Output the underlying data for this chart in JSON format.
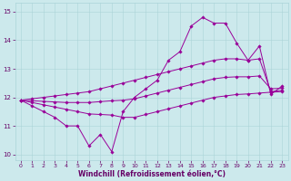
{
  "xlabel": "Windchill (Refroidissement éolien,°C)",
  "bg_color": "#cce9ec",
  "line_color": "#990099",
  "grid_color": "#aad4d8",
  "tick_color": "#660066",
  "x_hours": [
    0,
    1,
    2,
    3,
    4,
    5,
    6,
    7,
    8,
    9,
    10,
    11,
    12,
    13,
    14,
    15,
    16,
    17,
    18,
    19,
    20,
    21,
    22,
    23
  ],
  "y_actual": [
    11.9,
    11.7,
    11.5,
    11.3,
    11.0,
    11.0,
    10.3,
    10.7,
    10.1,
    11.5,
    12.0,
    12.3,
    12.6,
    13.3,
    13.6,
    14.5,
    14.8,
    14.6,
    14.6,
    13.9,
    13.3,
    13.8,
    12.1,
    12.4
  ],
  "y_max_line": [
    11.9,
    11.95,
    12.0,
    12.05,
    12.1,
    12.15,
    12.2,
    12.3,
    12.4,
    12.5,
    12.6,
    12.7,
    12.8,
    12.9,
    13.0,
    13.1,
    13.2,
    13.3,
    13.35,
    13.35,
    13.3,
    13.35,
    12.2,
    12.25
  ],
  "y_mid_line": [
    11.9,
    11.88,
    11.86,
    11.84,
    11.82,
    11.82,
    11.82,
    11.85,
    11.88,
    11.9,
    11.95,
    12.05,
    12.15,
    12.25,
    12.35,
    12.45,
    12.55,
    12.65,
    12.7,
    12.72,
    12.72,
    12.75,
    12.3,
    12.32
  ],
  "y_min_line": [
    11.9,
    11.82,
    11.74,
    11.66,
    11.58,
    11.5,
    11.42,
    11.4,
    11.38,
    11.3,
    11.3,
    11.4,
    11.5,
    11.6,
    11.7,
    11.8,
    11.9,
    12.0,
    12.05,
    12.1,
    12.12,
    12.15,
    12.18,
    12.2
  ],
  "ylim": [
    9.8,
    15.3
  ],
  "xlim": [
    -0.5,
    23.5
  ],
  "yticks": [
    10,
    11,
    12,
    13,
    14,
    15
  ],
  "xticks": [
    0,
    1,
    2,
    3,
    4,
    5,
    6,
    7,
    8,
    9,
    10,
    11,
    12,
    13,
    14,
    15,
    16,
    17,
    18,
    19,
    20,
    21,
    22,
    23
  ],
  "xlabel_fontsize": 5.5,
  "tick_fontsize": 4.5,
  "linewidth": 0.7,
  "markersize": 1.8
}
